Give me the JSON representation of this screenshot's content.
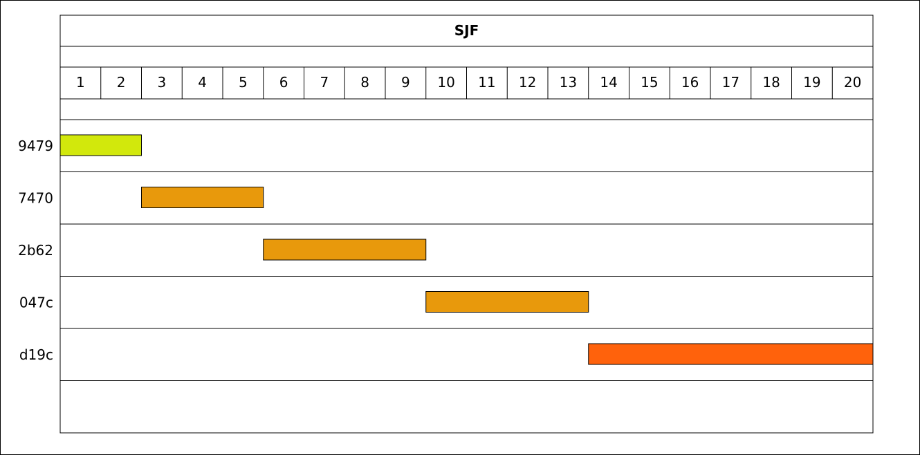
{
  "chart_data": {
    "type": "gantt",
    "title": "SJF",
    "time_slots": [
      1,
      2,
      3,
      4,
      5,
      6,
      7,
      8,
      9,
      10,
      11,
      12,
      13,
      14,
      15,
      16,
      17,
      18,
      19,
      20
    ],
    "tasks": [
      {
        "label": "9479",
        "start": 1,
        "end": 2,
        "color": "#D2E80C"
      },
      {
        "label": "7470",
        "start": 3,
        "end": 5,
        "color": "#E8990C"
      },
      {
        "label": "2b62",
        "start": 6,
        "end": 9,
        "color": "#E8990C"
      },
      {
        "label": "047c",
        "start": 10,
        "end": 13,
        "color": "#E8990C"
      },
      {
        "label": "d19c",
        "start": 14,
        "end": 20,
        "color": "#FF620C"
      }
    ],
    "grid": false,
    "legend": "none"
  }
}
